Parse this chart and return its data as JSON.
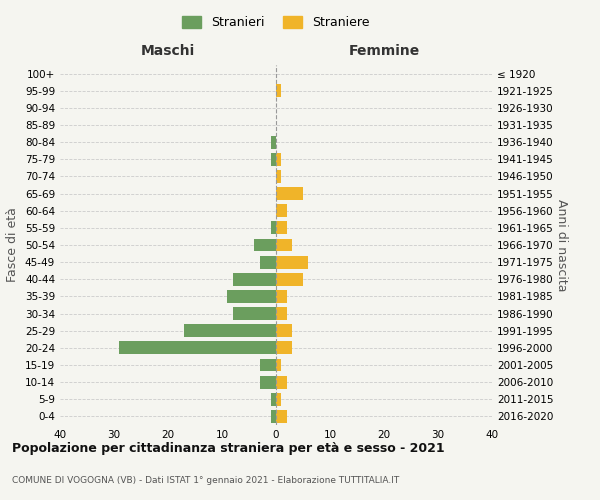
{
  "age_groups": [
    "0-4",
    "5-9",
    "10-14",
    "15-19",
    "20-24",
    "25-29",
    "30-34",
    "35-39",
    "40-44",
    "45-49",
    "50-54",
    "55-59",
    "60-64",
    "65-69",
    "70-74",
    "75-79",
    "80-84",
    "85-89",
    "90-94",
    "95-99",
    "100+"
  ],
  "birth_years": [
    "2016-2020",
    "2011-2015",
    "2006-2010",
    "2001-2005",
    "1996-2000",
    "1991-1995",
    "1986-1990",
    "1981-1985",
    "1976-1980",
    "1971-1975",
    "1966-1970",
    "1961-1965",
    "1956-1960",
    "1951-1955",
    "1946-1950",
    "1941-1945",
    "1936-1940",
    "1931-1935",
    "1926-1930",
    "1921-1925",
    "≤ 1920"
  ],
  "maschi": [
    1,
    1,
    3,
    3,
    29,
    17,
    8,
    9,
    8,
    3,
    4,
    1,
    0,
    0,
    0,
    1,
    1,
    0,
    0,
    0,
    0
  ],
  "femmine": [
    2,
    1,
    2,
    1,
    3,
    3,
    2,
    2,
    5,
    6,
    3,
    2,
    2,
    5,
    1,
    1,
    0,
    0,
    0,
    1,
    0
  ],
  "male_color": "#6b9e5e",
  "female_color": "#f0b429",
  "background_color": "#f5f5f0",
  "title": "Popolazione per cittadinanza straniera per età e sesso - 2021",
  "subtitle": "COMUNE DI VOGOGNA (VB) - Dati ISTAT 1° gennaio 2021 - Elaborazione TUTTITALIA.IT",
  "ylabel_left": "Fasce di età",
  "ylabel_right": "Anni di nascita",
  "xlabel_left": "Maschi",
  "xlabel_right": "Femmine",
  "legend_male": "Stranieri",
  "legend_female": "Straniere",
  "xlim": 40,
  "bar_height": 0.75,
  "center_line_color": "#999999",
  "grid_color": "#cccccc",
  "tick_fontsize": 7.5,
  "axis_label_fontsize": 9,
  "header_fontsize": 10,
  "title_fontsize": 9,
  "subtitle_fontsize": 6.5,
  "legend_fontsize": 9
}
